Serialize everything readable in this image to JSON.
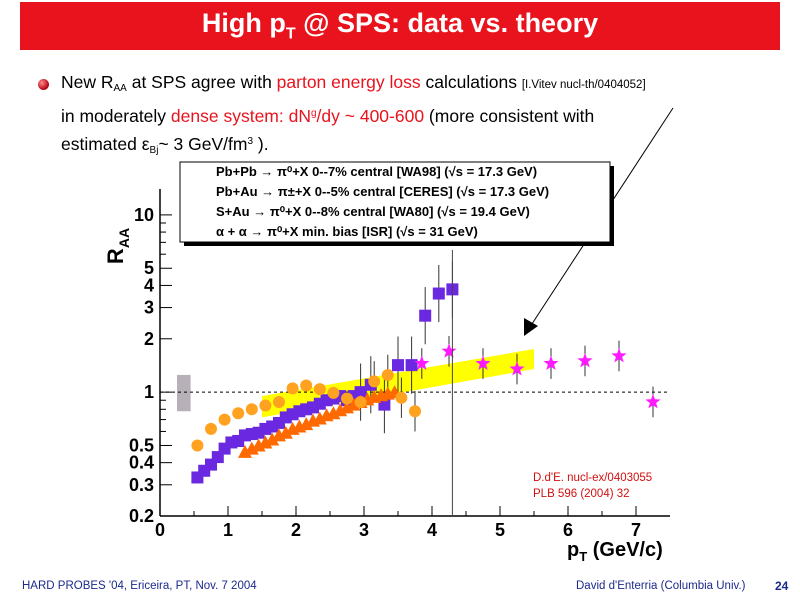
{
  "slide": {
    "title_main": "High p",
    "title_sub": "T",
    "title_rest": " @ SPS: data vs. theory",
    "footer_left": "HARD PROBES '04, Ericeira, PT, Nov. 7 2004",
    "footer_right": "David d'Enterria (Columbia Univ.)",
    "page_number": "24"
  },
  "bullet": {
    "t1": "New R",
    "t1_sub": "AA",
    "t2": " at SPS agree with ",
    "t3_red": "parton energy loss",
    "t4": " calculations ",
    "t5_ref": "[I.Vitev nucl-th/0404052]",
    "t6": "in moderately ",
    "t7_red": "dense system: dN",
    "t7_sup": "g",
    "t7_red2": "/dy ~ 400-600",
    "t8": " (more consistent with",
    "t9": "estimated ε",
    "t9_sub": "Bj",
    "t10": "~ 3 GeV/fm",
    "t10_sup": "3",
    "t11": " )."
  },
  "colors": {
    "title_bg": "#e8131d",
    "wa98": "#6a28e0",
    "ceres": "#ff6a00",
    "wa80": "#ffa21f",
    "isr": "#ff1aff",
    "theory_band": "#ffff00",
    "grey_box": "#b8b0b8",
    "ref_text": "#d01010",
    "footer": "#1c2a8c"
  },
  "chart_data": {
    "type": "scatter",
    "xlabel_main": "p",
    "xlabel_sub": "T",
    "xlabel_rest": " (GeV/c)",
    "ylabel_main": "R",
    "ylabel_sub": "AA",
    "xlim": [
      0,
      7.5
    ],
    "ylim": [
      0.2,
      14
    ],
    "y_log": true,
    "x_ticks": [
      "0",
      "1",
      "2",
      "3",
      "4",
      "5",
      "6",
      "7"
    ],
    "y_ticks": [
      "0.2",
      "0.3",
      "0.4",
      "0.5",
      "1",
      "2",
      "3",
      "4",
      "5",
      "10"
    ],
    "y_tick_values": [
      0.2,
      0.3,
      0.4,
      0.5,
      1,
      2,
      3,
      4,
      5,
      10
    ],
    "reference_line": 1,
    "grid": false,
    "legend_position": "top",
    "legend": [
      "Pb+Pb → π⁰+X  0--7%  central [WA98] (√s = 17.3 GeV)",
      "Pb+Au → π±+X  0--5% central [CERES] (√s = 17.3 GeV)",
      "S+Au → π⁰+X  0--8%  central [WA80] (√s = 19.4 GeV)",
      "α + α → π⁰+X min. bias [ISR] (√s = 31 GeV)"
    ],
    "annotation_lines": [
      "D.d'E. nucl-ex/0403055",
      "PLB 596 (2004) 32"
    ],
    "series": [
      {
        "name": "WA98",
        "marker": "square",
        "x": [
          0.55,
          0.65,
          0.75,
          0.85,
          0.95,
          1.05,
          1.15,
          1.25,
          1.35,
          1.45,
          1.55,
          1.65,
          1.75,
          1.85,
          1.95,
          2.05,
          2.15,
          2.25,
          2.35,
          2.45,
          2.55,
          2.65,
          2.75,
          2.85,
          2.95,
          3.1,
          3.3,
          3.5,
          3.7,
          3.9,
          4.1,
          4.3
        ],
        "y": [
          0.33,
          0.36,
          0.39,
          0.43,
          0.48,
          0.52,
          0.53,
          0.57,
          0.58,
          0.59,
          0.62,
          0.64,
          0.67,
          0.72,
          0.75,
          0.78,
          0.8,
          0.82,
          0.86,
          0.9,
          0.92,
          0.95,
          0.9,
          0.95,
          1.0,
          1.1,
          0.85,
          1.42,
          1.42,
          2.7,
          3.6,
          3.8
        ]
      },
      {
        "name": "CERES",
        "marker": "triangle",
        "x": [
          1.25,
          1.35,
          1.45,
          1.55,
          1.65,
          1.75,
          1.85,
          1.95,
          2.05,
          2.15,
          2.25,
          2.35,
          2.45,
          2.55,
          2.65,
          2.75,
          2.85,
          2.95,
          3.05,
          3.15,
          3.25,
          3.35,
          3.45
        ],
        "y": [
          0.46,
          0.48,
          0.5,
          0.52,
          0.54,
          0.57,
          0.59,
          0.62,
          0.64,
          0.66,
          0.69,
          0.71,
          0.74,
          0.76,
          0.79,
          0.82,
          0.85,
          0.88,
          0.91,
          0.94,
          0.96,
          0.98,
          1.0
        ]
      },
      {
        "name": "WA80",
        "marker": "circle",
        "x": [
          0.55,
          0.75,
          0.95,
          1.15,
          1.35,
          1.55,
          1.75,
          1.95,
          2.15,
          2.35,
          2.55,
          2.75,
          2.95,
          3.15,
          3.35,
          3.55,
          3.75
        ],
        "y": [
          0.5,
          0.62,
          0.7,
          0.76,
          0.8,
          0.84,
          0.88,
          1.05,
          1.09,
          1.04,
          0.99,
          0.92,
          0.88,
          1.15,
          1.25,
          0.93,
          0.78
        ]
      },
      {
        "name": "ISR",
        "marker": "star",
        "x": [
          3.85,
          4.25,
          4.75,
          5.25,
          5.75,
          6.25,
          6.75,
          7.25
        ],
        "y": [
          1.45,
          1.7,
          1.45,
          1.35,
          1.45,
          1.5,
          1.6,
          0.88
        ]
      }
    ],
    "theory_band": {
      "x": [
        1.5,
        5.5
      ],
      "y_low_start": 0.72,
      "y_high_start": 0.95,
      "y_low_end": 1.35,
      "y_high_end": 1.75
    },
    "syst_box": {
      "x": [
        0.25,
        0.45
      ],
      "y": [
        0.78,
        1.25
      ]
    }
  }
}
